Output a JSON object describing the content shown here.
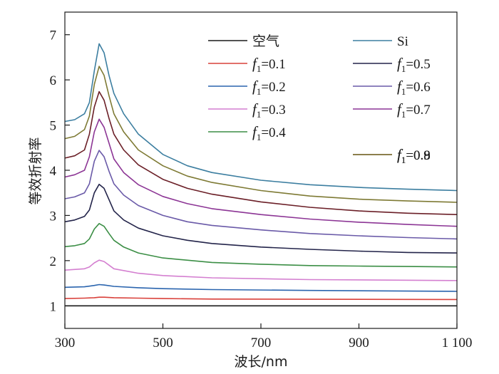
{
  "chart_data": {
    "type": "line",
    "title": "",
    "xlabel": "波长/nm",
    "ylabel": "等效折射率",
    "xlim": [
      300,
      1100
    ],
    "ylim": [
      0.5,
      7.5
    ],
    "xticks": [
      300,
      500,
      700,
      900,
      1100
    ],
    "xtick_labels": [
      "300",
      "500",
      "700",
      "900",
      "1 100"
    ],
    "yticks": [
      1,
      2,
      3,
      4,
      5,
      6,
      7
    ],
    "grid": false,
    "legend_position": "top-right, two columns",
    "series": [
      {
        "name": "空气",
        "label_text": "空气",
        "color": "#1a1a1a",
        "x": [
          300,
          1100
        ],
        "y": [
          1.0,
          1.0
        ]
      },
      {
        "name": "Si",
        "label_text": "Si",
        "color": "#3c7ea0",
        "x": [
          300,
          320,
          340,
          350,
          360,
          370,
          380,
          390,
          400,
          420,
          450,
          500,
          550,
          600,
          700,
          800,
          900,
          1000,
          1100
        ],
        "y": [
          5.08,
          5.12,
          5.25,
          5.5,
          6.2,
          6.8,
          6.6,
          6.1,
          5.7,
          5.25,
          4.8,
          4.35,
          4.1,
          3.95,
          3.78,
          3.68,
          3.62,
          3.58,
          3.55
        ]
      },
      {
        "name": "f1=0.1",
        "sub": "1",
        "value_text": "=0.1",
        "color": "#d9403a",
        "x": [
          300,
          340,
          360,
          370,
          380,
          400,
          450,
          500,
          600,
          800,
          1100
        ],
        "y": [
          1.16,
          1.17,
          1.18,
          1.19,
          1.19,
          1.18,
          1.17,
          1.16,
          1.15,
          1.145,
          1.14
        ]
      },
      {
        "name": "f1=0.5",
        "sub": "1",
        "value_text": "=0.5",
        "color": "#23244a",
        "x": [
          300,
          320,
          340,
          350,
          360,
          370,
          380,
          390,
          400,
          420,
          450,
          500,
          550,
          600,
          700,
          800,
          900,
          1000,
          1100
        ],
        "y": [
          2.86,
          2.9,
          2.98,
          3.12,
          3.5,
          3.69,
          3.6,
          3.35,
          3.1,
          2.9,
          2.72,
          2.55,
          2.45,
          2.38,
          2.3,
          2.25,
          2.21,
          2.18,
          2.17
        ]
      },
      {
        "name": "f1=0.2",
        "sub": "1",
        "value_text": "=0.2",
        "color": "#2a64ae",
        "x": [
          300,
          340,
          360,
          370,
          380,
          400,
          450,
          500,
          600,
          800,
          1100
        ],
        "y": [
          1.41,
          1.42,
          1.45,
          1.47,
          1.46,
          1.43,
          1.4,
          1.38,
          1.36,
          1.34,
          1.32
        ]
      },
      {
        "name": "f1=0.6",
        "sub": "1",
        "value_text": "=0.6",
        "color": "#6a5aa8",
        "x": [
          300,
          320,
          340,
          350,
          360,
          370,
          380,
          390,
          400,
          420,
          450,
          500,
          550,
          600,
          700,
          800,
          900,
          1000,
          1100
        ],
        "y": [
          3.37,
          3.41,
          3.5,
          3.7,
          4.2,
          4.44,
          4.3,
          3.98,
          3.7,
          3.45,
          3.22,
          3.0,
          2.86,
          2.78,
          2.68,
          2.6,
          2.55,
          2.51,
          2.48
        ]
      },
      {
        "name": "f1=0.3",
        "sub": "1",
        "value_text": "=0.3",
        "color": "#d47fd0",
        "x": [
          300,
          340,
          350,
          360,
          370,
          380,
          390,
          400,
          450,
          500,
          600,
          800,
          1100
        ],
        "y": [
          1.79,
          1.82,
          1.86,
          1.95,
          2.01,
          1.98,
          1.9,
          1.82,
          1.72,
          1.67,
          1.62,
          1.58,
          1.56
        ]
      },
      {
        "name": "f1=0.7",
        "sub": "1",
        "value_text": "=0.7",
        "color": "#8c3595",
        "x": [
          300,
          320,
          340,
          350,
          360,
          370,
          380,
          390,
          400,
          420,
          450,
          500,
          550,
          600,
          700,
          800,
          900,
          1000,
          1100
        ],
        "y": [
          3.85,
          3.9,
          4.0,
          4.3,
          4.85,
          5.13,
          4.95,
          4.6,
          4.25,
          3.95,
          3.68,
          3.42,
          3.26,
          3.15,
          3.02,
          2.92,
          2.85,
          2.8,
          2.76
        ]
      },
      {
        "name": "f1=0.4",
        "sub": "1",
        "value_text": "=0.4",
        "color": "#3b8e45",
        "x": [
          300,
          320,
          340,
          350,
          360,
          370,
          380,
          390,
          400,
          420,
          450,
          500,
          600,
          700,
          800,
          900,
          1000,
          1100
        ],
        "y": [
          2.31,
          2.33,
          2.38,
          2.48,
          2.7,
          2.82,
          2.76,
          2.6,
          2.45,
          2.3,
          2.17,
          2.06,
          1.96,
          1.92,
          1.89,
          1.88,
          1.87,
          1.86
        ]
      },
      {
        "name": "f1=0.8",
        "sub": "1",
        "value_text": "=0.8",
        "color": "#6b1f27",
        "x": [
          300,
          320,
          340,
          350,
          360,
          370,
          380,
          390,
          400,
          420,
          450,
          500,
          550,
          600,
          700,
          800,
          900,
          1000,
          1100
        ],
        "y": [
          4.27,
          4.32,
          4.45,
          4.8,
          5.4,
          5.74,
          5.55,
          5.15,
          4.8,
          4.45,
          4.12,
          3.8,
          3.6,
          3.47,
          3.3,
          3.18,
          3.1,
          3.05,
          3.02
        ]
      },
      {
        "name": "f1=0.9",
        "sub": "1",
        "value_text": "=0.9",
        "color": "#7e7a34",
        "x": [
          300,
          320,
          340,
          350,
          360,
          370,
          380,
          390,
          400,
          420,
          450,
          500,
          550,
          600,
          700,
          800,
          900,
          1000,
          1100
        ],
        "y": [
          4.7,
          4.75,
          4.9,
          5.2,
          5.9,
          6.3,
          6.1,
          5.65,
          5.25,
          4.85,
          4.45,
          4.1,
          3.87,
          3.73,
          3.55,
          3.43,
          3.36,
          3.32,
          3.29
        ]
      }
    ]
  }
}
